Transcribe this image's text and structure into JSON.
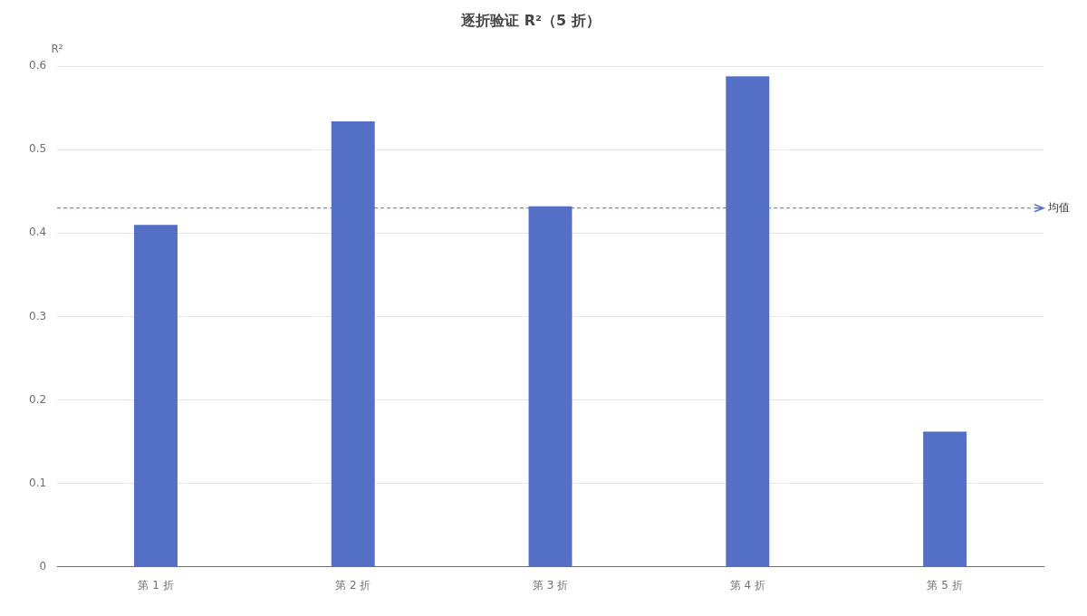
{
  "chart_data": {
    "type": "bar",
    "title": "逐折验证 R²（5 折）",
    "ylabel": "R²",
    "categories": [
      "第 1 折",
      "第 2 折",
      "第 3 折",
      "第 4 折",
      "第 5 折"
    ],
    "values": [
      0.41,
      0.534,
      0.432,
      0.588,
      0.162
    ],
    "color": "#5470c6",
    "ylim": [
      0,
      0.6
    ],
    "yticks": [
      0,
      0.1,
      0.2,
      0.3,
      0.4,
      0.5,
      0.6
    ],
    "grid": "y",
    "legend": false,
    "ref_lines": [
      {
        "axis": "y",
        "value": 0.43,
        "label": "均值",
        "color": "#5470c6",
        "line_style": "dashed"
      }
    ]
  }
}
